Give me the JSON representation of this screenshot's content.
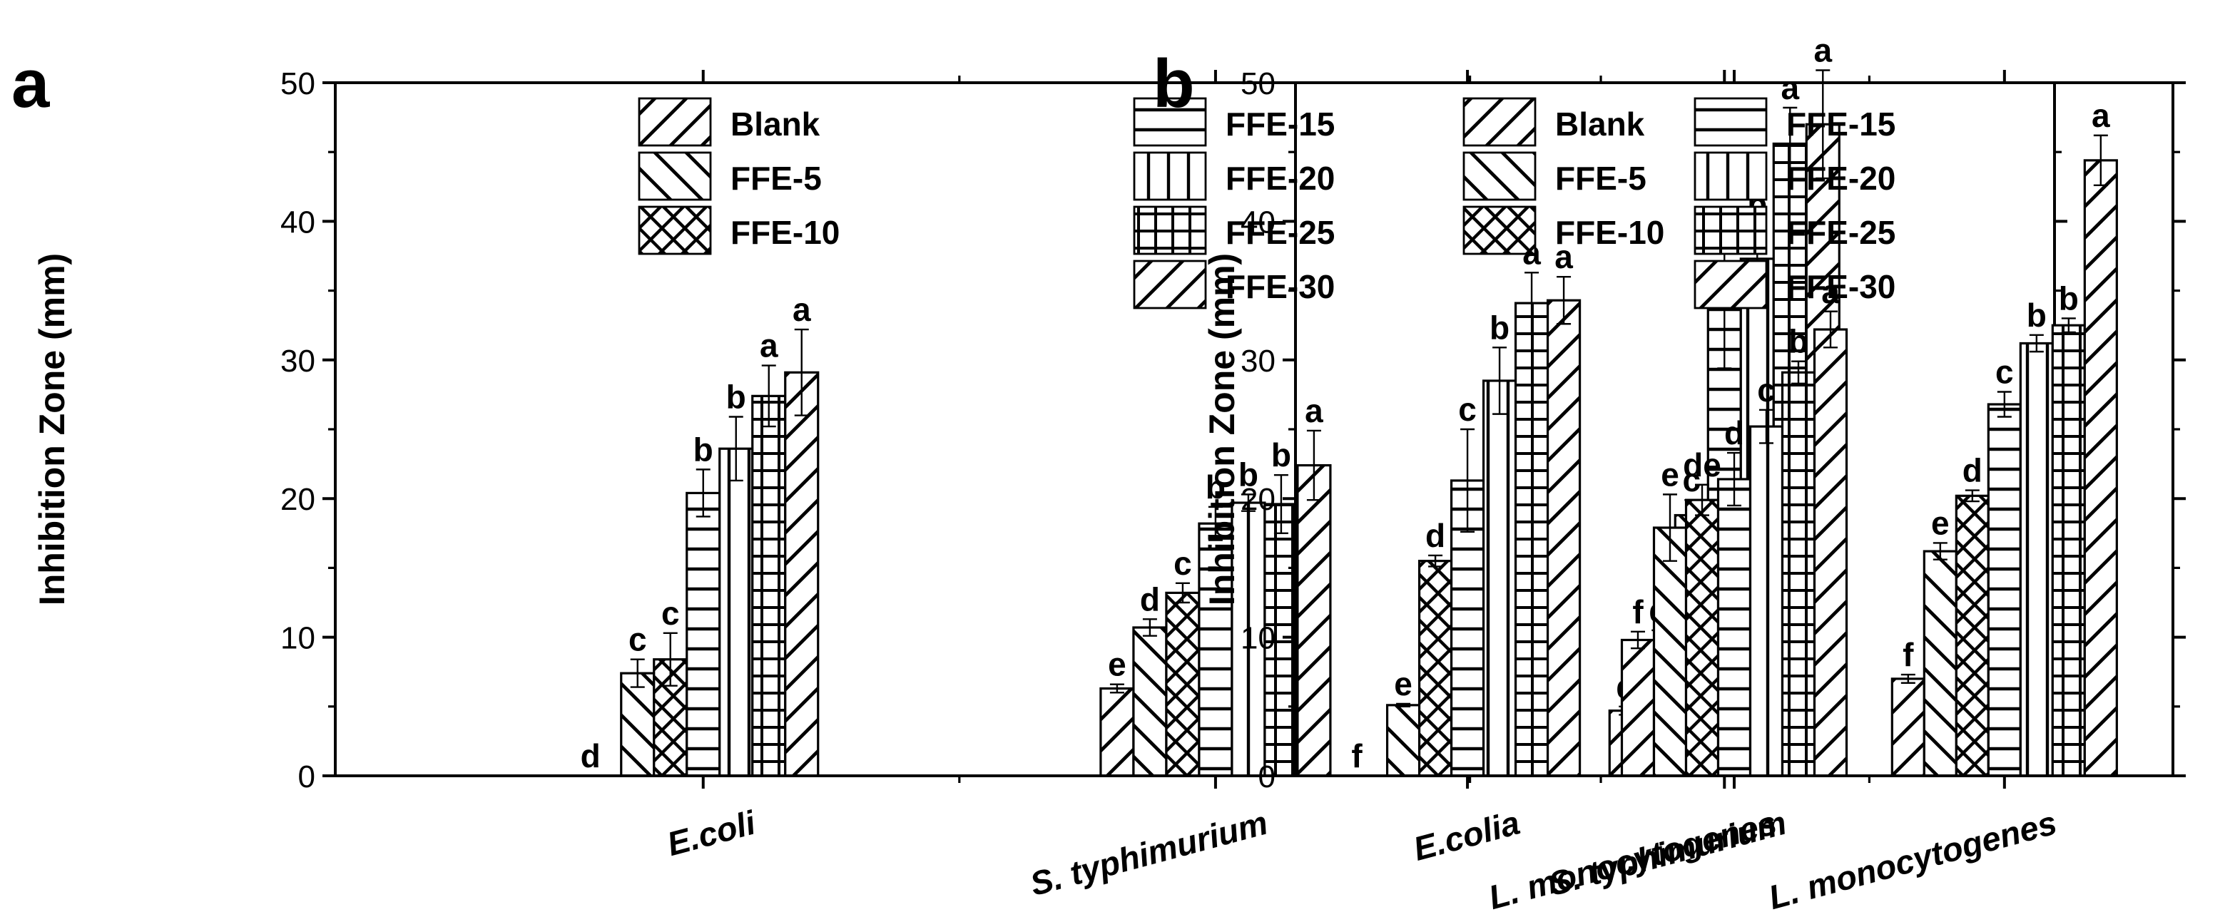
{
  "chart_data": [
    {
      "panel_label": "a",
      "type": "bar",
      "title": "",
      "xlabel": "",
      "ylabel": "Inhibition Zone (mm)",
      "ylim": [
        0,
        50
      ],
      "yticks": [
        0,
        10,
        20,
        30,
        40,
        50
      ],
      "grid": false,
      "legend_position": "top-center",
      "categories": [
        "E.coli",
        "S. typhimurium",
        "L. monocytogenes"
      ],
      "series": [
        {
          "name": "Blank",
          "pattern": "hatch-slash",
          "values": [
            0,
            6.3,
            4.7
          ],
          "errors": [
            0,
            0.3,
            0.3
          ],
          "labels": [
            "d",
            "e",
            "d"
          ]
        },
        {
          "name": "FFE-5",
          "pattern": "hatch-back",
          "values": [
            7.4,
            10.7,
            8.9
          ],
          "errors": [
            1.0,
            0.6,
            1.6
          ],
          "labels": [
            "c",
            "d",
            "d"
          ]
        },
        {
          "name": "FFE-10",
          "pattern": "hatch-cross",
          "values": [
            8.4,
            13.2,
            18.8
          ],
          "errors": [
            1.9,
            0.7,
            1.1
          ],
          "labels": [
            "c",
            "c",
            "c"
          ]
        },
        {
          "name": "FFE-15",
          "pattern": "hatch-horiz",
          "values": [
            20.4,
            18.2,
            33.9
          ],
          "errors": [
            1.7,
            1.2,
            4.5
          ],
          "labels": [
            "b",
            "b",
            "b"
          ]
        },
        {
          "name": "FFE-20",
          "pattern": "hatch-vert",
          "values": [
            23.6,
            19.7,
            37.3
          ],
          "errors": [
            2.3,
            0.6,
            2.5
          ],
          "labels": [
            "b",
            "b",
            "b"
          ]
        },
        {
          "name": "FFE-25",
          "pattern": "hatch-grid",
          "values": [
            27.4,
            19.6,
            45.6
          ],
          "errors": [
            2.2,
            2.1,
            2.6
          ],
          "labels": [
            "a",
            "b",
            "a"
          ]
        },
        {
          "name": "FFE-30",
          "pattern": "hatch-slash",
          "values": [
            29.1,
            22.4,
            47.0
          ],
          "errors": [
            3.1,
            2.5,
            3.9
          ],
          "labels": [
            "a",
            "a",
            "a"
          ]
        }
      ]
    },
    {
      "panel_label": "b",
      "type": "bar",
      "title": "",
      "xlabel": "",
      "ylabel": "Inhibition Zone (mm)",
      "ylim": [
        0,
        50
      ],
      "yticks": [
        0,
        10,
        20,
        30,
        40,
        50
      ],
      "grid": false,
      "legend_position": "top-center",
      "categories": [
        "E.colia",
        "S. typhimurium",
        "L. monocytogenes"
      ],
      "series": [
        {
          "name": "Blank",
          "pattern": "hatch-slash",
          "values": [
            0,
            9.8,
            7.0
          ],
          "errors": [
            0,
            0.6,
            0.3
          ],
          "labels": [
            "f",
            "f",
            "f"
          ]
        },
        {
          "name": "FFE-5",
          "pattern": "hatch-back",
          "values": [
            5.1,
            17.9,
            16.2
          ],
          "errors": [
            0.1,
            2.4,
            0.6
          ],
          "labels": [
            "e",
            "e",
            "e"
          ]
        },
        {
          "name": "FFE-10",
          "pattern": "hatch-cross",
          "values": [
            15.5,
            19.9,
            20.2
          ],
          "errors": [
            0.4,
            1.1,
            0.4
          ],
          "labels": [
            "d",
            "de",
            "d"
          ]
        },
        {
          "name": "FFE-15",
          "pattern": "hatch-horiz",
          "values": [
            21.3,
            21.4,
            26.8
          ],
          "errors": [
            3.7,
            1.9,
            0.9
          ],
          "labels": [
            "c",
            "d",
            "c"
          ]
        },
        {
          "name": "FFE-20",
          "pattern": "hatch-vert",
          "values": [
            28.5,
            25.2,
            31.2
          ],
          "errors": [
            2.4,
            1.2,
            0.6
          ],
          "labels": [
            "b",
            "c",
            "b"
          ]
        },
        {
          "name": "FFE-25",
          "pattern": "hatch-grid",
          "values": [
            34.1,
            29.1,
            32.5
          ],
          "errors": [
            2.2,
            0.8,
            0.5
          ],
          "labels": [
            "a",
            "b",
            "b"
          ]
        },
        {
          "name": "FFE-30",
          "pattern": "hatch-slash",
          "values": [
            34.3,
            32.2,
            44.4
          ],
          "errors": [
            1.7,
            1.3,
            1.8
          ],
          "labels": [
            "a",
            "a",
            "a"
          ]
        }
      ]
    }
  ]
}
